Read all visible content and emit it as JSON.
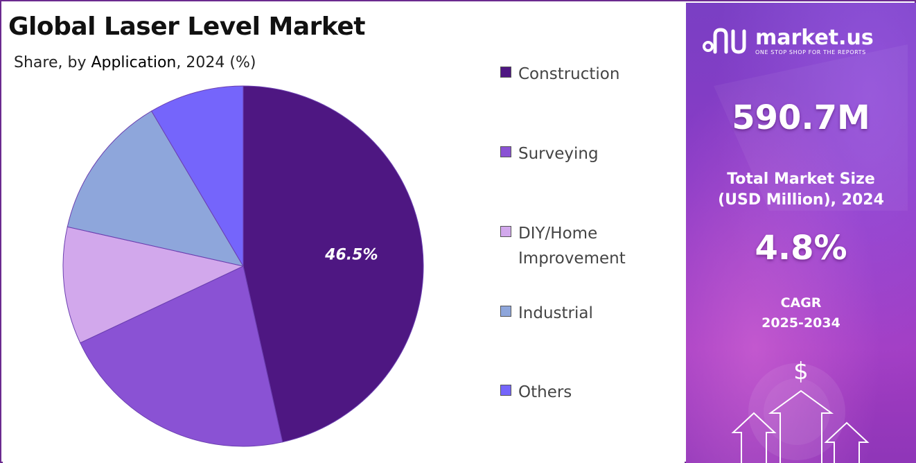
{
  "title": "Global Laser Level Market",
  "subtitle": {
    "prefix": "Share, by ",
    "dimension": "Application",
    "suffix": ", 2024 (%)"
  },
  "chart_data": {
    "type": "pie",
    "title": "Global Laser Level Market",
    "subtitle": "Share, by Application, 2024 (%)",
    "legend_position": "right",
    "slices": [
      {
        "name": "Construction",
        "value": 46.5,
        "color": "#4e1782",
        "label": "46.5%"
      },
      {
        "name": "Surveying",
        "value": 21.5,
        "color": "#8a52d4"
      },
      {
        "name": "DIY/Home Improvement",
        "value": 10.5,
        "color": "#d2a8ec"
      },
      {
        "name": "Industrial",
        "value": 13.0,
        "color": "#8ea6db"
      },
      {
        "name": "Others",
        "value": 8.5,
        "color": "#7565fb"
      }
    ]
  },
  "legend": [
    {
      "label": "Construction",
      "color": "#4e1782"
    },
    {
      "label": "Surveying",
      "color": "#8a52d4"
    },
    {
      "label": "DIY/Home Improvement",
      "color": "#d2a8ec"
    },
    {
      "label": "Industrial",
      "color": "#8ea6db"
    },
    {
      "label": "Others",
      "color": "#7565fb"
    }
  ],
  "sidebar": {
    "brand_name": "market.us",
    "brand_tagline": "ONE STOP SHOP FOR THE REPORTS",
    "market_size_value": "590.7M",
    "market_size_label_line1": "Total Market Size",
    "market_size_label_line2": "(USD Million), 2024",
    "cagr_value": "4.8%",
    "cagr_label": "CAGR",
    "cagr_period": "2025-2034",
    "currency_symbol": "$"
  },
  "colors": {
    "border": "#6b2a8f",
    "panel_accent": "#8b3bc6"
  }
}
